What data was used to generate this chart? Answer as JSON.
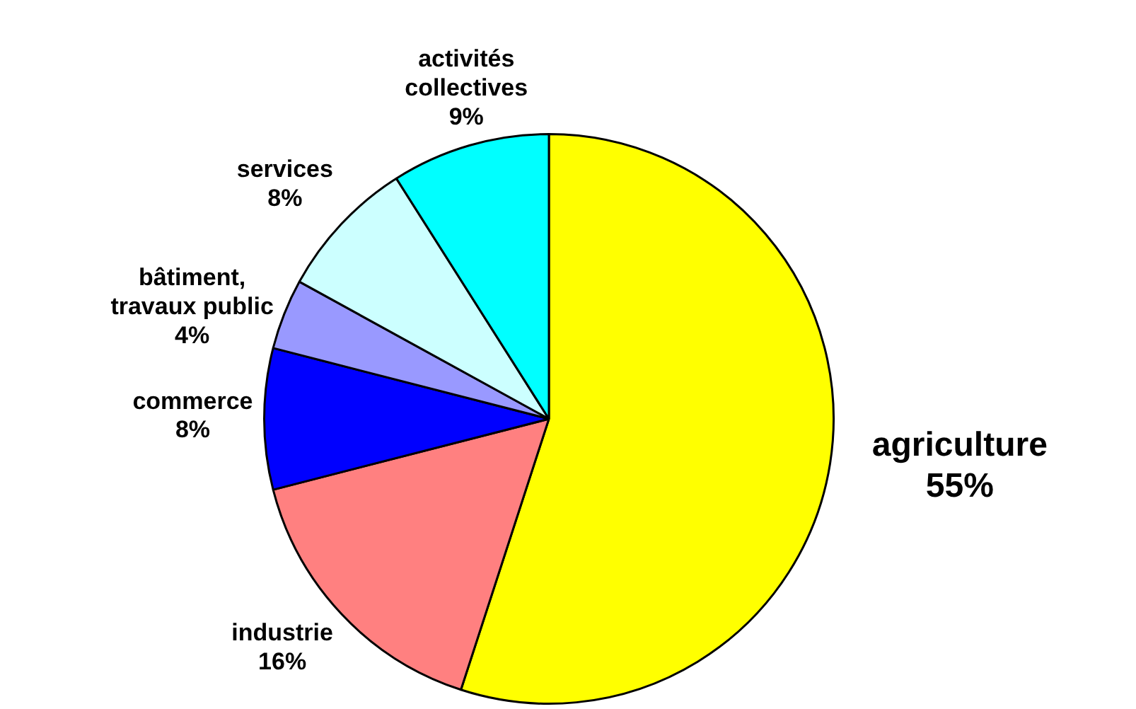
{
  "chart_data": {
    "type": "pie",
    "categories": [
      "agriculture",
      "industrie",
      "commerce",
      "bâtiment, travaux public",
      "services",
      "activités collectives"
    ],
    "values": [
      55,
      16,
      8,
      4,
      8,
      9
    ],
    "colors": [
      "#ffff00",
      "#ff8080",
      "#0000ff",
      "#9999ff",
      "#ccffff",
      "#00ffff"
    ],
    "value_labels": [
      "55%",
      "16%",
      "8%",
      "4%",
      "8%",
      "9%"
    ],
    "legend": false
  }
}
